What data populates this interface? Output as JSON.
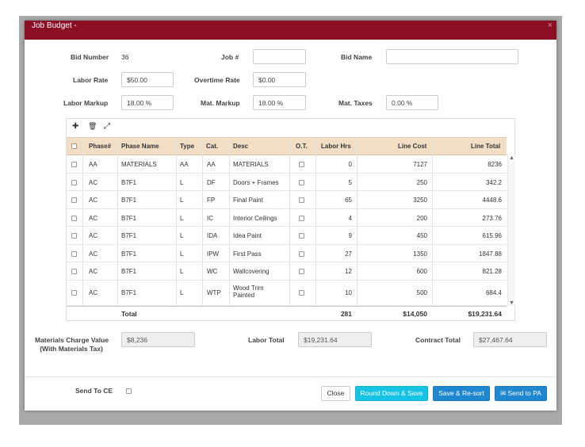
{
  "modal": {
    "title": "Job Budget -",
    "close_glyph": "×"
  },
  "form": {
    "bid_number_label": "Bid Number",
    "bid_number_value": "36",
    "job_number_label": "Job #",
    "job_number_value": "",
    "bid_name_label": "Bid Name",
    "bid_name_value": "",
    "labor_rate_label": "Labor Rate",
    "labor_rate_value": "$50.00",
    "overtime_rate_label": "Overtime Rate",
    "overtime_rate_value": "$0.00",
    "labor_markup_label": "Labor Markup",
    "labor_markup_value": "18.00 %",
    "mat_markup_label": "Mat. Markup",
    "mat_markup_value": "18.00 %",
    "mat_taxes_label": "Mat. Taxes",
    "mat_taxes_value": "0.00 %"
  },
  "toolbar": {
    "add_glyph": "✚",
    "delete_glyph": "🗑",
    "expand_glyph": "⤢"
  },
  "table": {
    "headers": {
      "phase_num": "Phase#",
      "phase_name": "Phase Name",
      "type": "Type",
      "cat": "Cat.",
      "desc": "Desc",
      "ot": "O.T.",
      "labor_hrs": "Labor Hrs",
      "line_cost": "Line Cost",
      "line_total": "Line Total"
    },
    "rows": [
      {
        "phase": "AA",
        "name": "MATERIALS",
        "type": "AA",
        "cat": "AA",
        "desc": "MATERIALS",
        "hrs": "0",
        "cost": "7127",
        "total": "8236"
      },
      {
        "phase": "AC",
        "name": "B7F1",
        "type": "L",
        "cat": "DF",
        "desc": "Doors + Frames",
        "hrs": "5",
        "cost": "250",
        "total": "342.2"
      },
      {
        "phase": "AC",
        "name": "B7F1",
        "type": "L",
        "cat": "FP",
        "desc": "Final Paint",
        "hrs": "65",
        "cost": "3250",
        "total": "4448.6"
      },
      {
        "phase": "AC",
        "name": "B7F1",
        "type": "L",
        "cat": "IC",
        "desc": "Interior Ceilings",
        "hrs": "4",
        "cost": "200",
        "total": "273.76"
      },
      {
        "phase": "AC",
        "name": "B7F1",
        "type": "L",
        "cat": "IDA",
        "desc": "Idea Paint",
        "hrs": "9",
        "cost": "450",
        "total": "615.96"
      },
      {
        "phase": "AC",
        "name": "B7F1",
        "type": "L",
        "cat": "IPW",
        "desc": "First Pass",
        "hrs": "27",
        "cost": "1350",
        "total": "1847.88"
      },
      {
        "phase": "AC",
        "name": "B7F1",
        "type": "L",
        "cat": "WC",
        "desc": "Wallcovering",
        "hrs": "12",
        "cost": "600",
        "total": "821.28"
      },
      {
        "phase": "AC",
        "name": "B7F1",
        "type": "L",
        "cat": "WTP",
        "desc": "Wood Trim Painted",
        "hrs": "10",
        "cost": "500",
        "total": "684.4"
      }
    ],
    "totals": {
      "label": "Total",
      "hrs": "281",
      "cost": "$14,050",
      "total": "$19,231.64"
    }
  },
  "summary": {
    "materials_charge_label_1": "Materials Charge Value",
    "materials_charge_label_2": "(With Materials Tax)",
    "materials_charge_value": "$8,236",
    "labor_total_label": "Labor Total",
    "labor_total_value": "$19,231.64",
    "contract_total_label": "Contract Total",
    "contract_total_value": "$27,467.64"
  },
  "footer": {
    "send_to_ce_label": "Send To CE",
    "close_label": "Close",
    "round_down_label": "Round Down & Save",
    "save_resort_label": "Save & Re-sort",
    "send_pa_label": "✉ Send to PA"
  }
}
